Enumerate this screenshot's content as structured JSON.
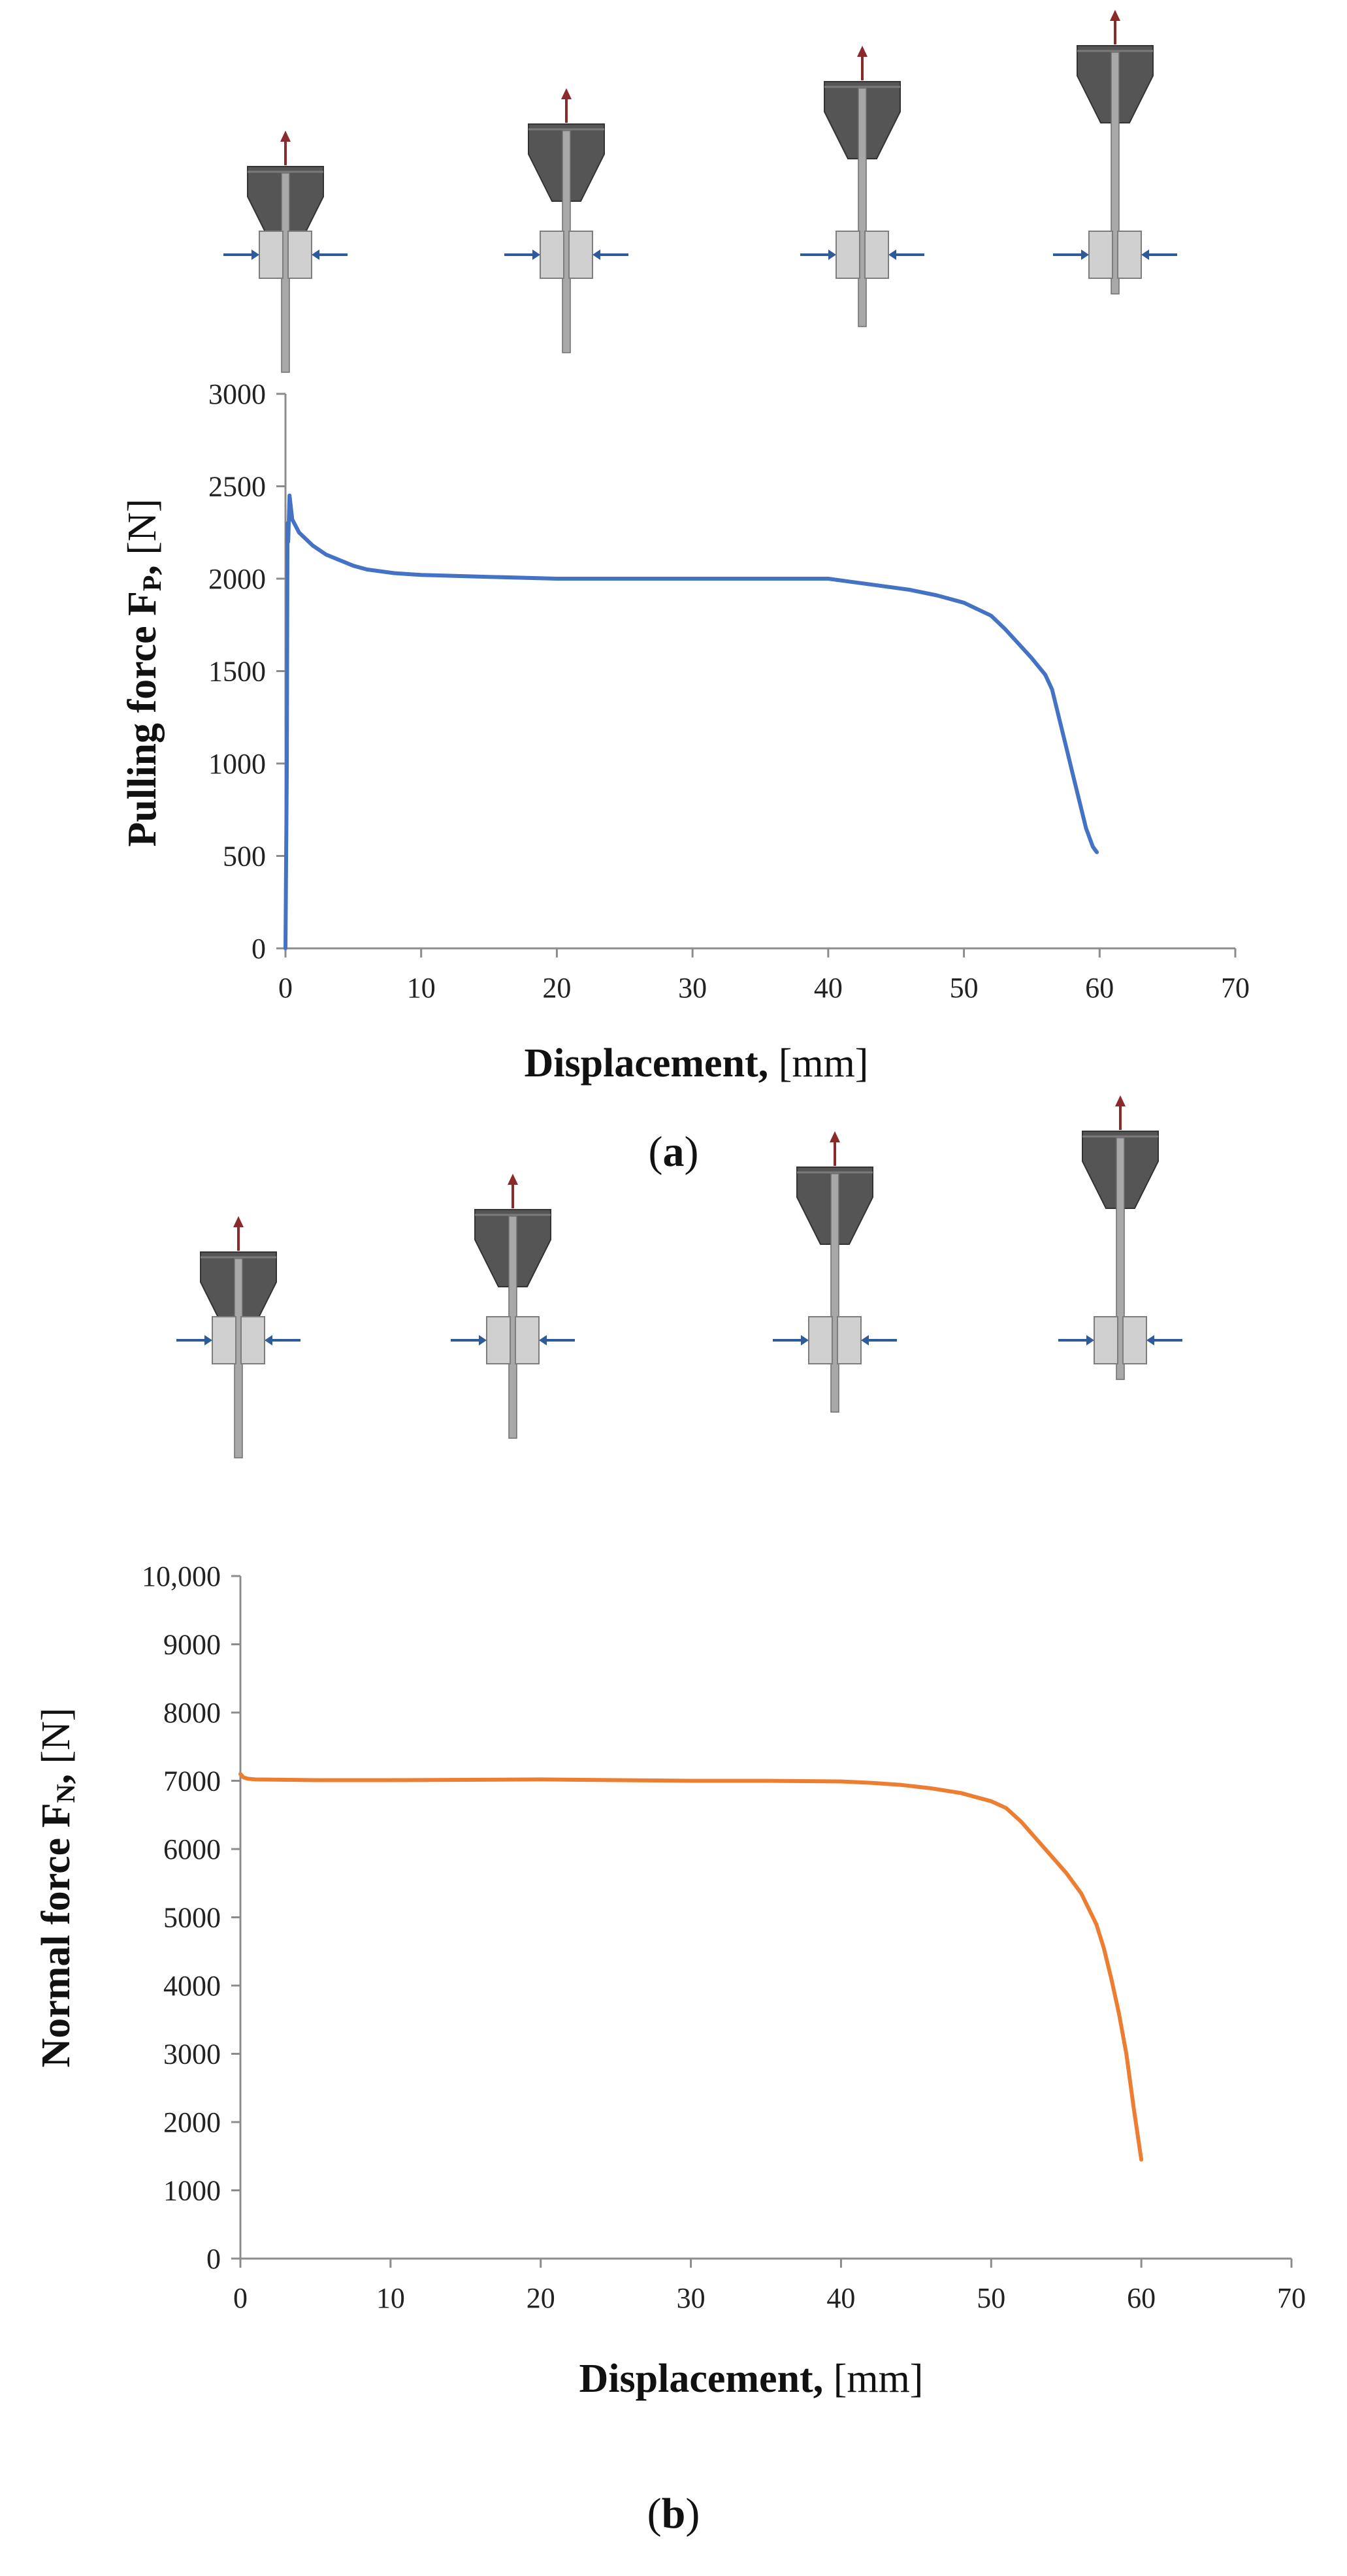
{
  "chart_data": [
    {
      "type": "line",
      "panel_caption": {
        "open": "(",
        "letter": "a",
        "close": ")"
      },
      "xlabel": {
        "bold": "Displacement,",
        "unit": "[mm]"
      },
      "ylabel": {
        "bold": "Pulling force F",
        "sub": "P",
        "bold_tail": ",",
        "unit": "[N]"
      },
      "xlim": [
        0,
        70
      ],
      "ylim": [
        0,
        3000
      ],
      "x_ticks": [
        0,
        10,
        20,
        30,
        40,
        50,
        60,
        70
      ],
      "y_ticks": [
        0,
        500,
        1000,
        1500,
        2000,
        2500,
        3000
      ],
      "x_tick_labels": [
        "0",
        "10",
        "20",
        "30",
        "40",
        "50",
        "60",
        "70"
      ],
      "y_tick_labels": [
        "0",
        "500",
        "1000",
        "1500",
        "2000",
        "2500",
        "3000"
      ],
      "grid": false,
      "series": [
        {
          "name": "Pulling force",
          "color": "#4472c4",
          "x": [
            0,
            0.1,
            0.15,
            0.2,
            0.3,
            0.5,
            1,
            2,
            3,
            4,
            5,
            6,
            8,
            10,
            15,
            20,
            25,
            30,
            35,
            40,
            42,
            44,
            46,
            48,
            50,
            52,
            53,
            54,
            55,
            56,
            56.5,
            57,
            57.5,
            58,
            58.5,
            59,
            59.5,
            59.8
          ],
          "values": [
            0,
            1000,
            2300,
            2200,
            2450,
            2320,
            2250,
            2180,
            2130,
            2100,
            2070,
            2050,
            2030,
            2020,
            2010,
            2000,
            2000,
            2000,
            2000,
            2000,
            1980,
            1960,
            1940,
            1910,
            1870,
            1800,
            1730,
            1650,
            1570,
            1480,
            1400,
            1250,
            1100,
            950,
            800,
            650,
            550,
            520
          ]
        }
      ],
      "stage_icons": [
        {
          "label": "stage-1",
          "color_body": "#555555",
          "color_jaw": "#d0d0d0",
          "color_arrow": "#8b2a2a",
          "color_side": "#2e5c9a"
        },
        {
          "label": "stage-2",
          "color_body": "#555555",
          "color_jaw": "#d0d0d0",
          "color_arrow": "#8b2a2a",
          "color_side": "#2e5c9a"
        },
        {
          "label": "stage-3",
          "color_body": "#555555",
          "color_jaw": "#d0d0d0",
          "color_arrow": "#8b2a2a",
          "color_side": "#2e5c9a"
        },
        {
          "label": "stage-4",
          "color_body": "#555555",
          "color_jaw": "#d0d0d0",
          "color_arrow": "#8b2a2a",
          "color_side": "#2e5c9a"
        }
      ]
    },
    {
      "type": "line",
      "panel_caption": {
        "open": "(",
        "letter": "b",
        "close": ")"
      },
      "xlabel": {
        "bold": "Displacement,",
        "unit": "[mm]"
      },
      "ylabel": {
        "bold": "Normal force F",
        "sub": "N",
        "bold_tail": ",",
        "unit": "[N]"
      },
      "xlim": [
        0,
        70
      ],
      "ylim": [
        0,
        10000
      ],
      "x_ticks": [
        0,
        10,
        20,
        30,
        40,
        50,
        60,
        70
      ],
      "y_ticks": [
        0,
        1000,
        2000,
        3000,
        4000,
        5000,
        6000,
        7000,
        8000,
        9000,
        10000
      ],
      "x_tick_labels": [
        "0",
        "10",
        "20",
        "30",
        "40",
        "50",
        "60",
        "70"
      ],
      "y_tick_labels": [
        "0",
        "1000",
        "2000",
        "3000",
        "4000",
        "5000",
        "6000",
        "7000",
        "8000",
        "9000",
        "10,000"
      ],
      "grid": false,
      "series": [
        {
          "name": "Normal force",
          "color": "#ed7d31",
          "x": [
            0,
            0.2,
            0.5,
            1,
            5,
            10,
            20,
            30,
            35,
            40,
            42,
            44,
            46,
            48,
            50,
            51,
            52,
            53,
            54,
            55,
            56,
            57,
            57.5,
            58,
            58.5,
            59,
            59.5,
            60
          ],
          "values": [
            7100,
            7050,
            7030,
            7020,
            7010,
            7010,
            7020,
            7000,
            7000,
            6990,
            6970,
            6940,
            6890,
            6820,
            6700,
            6600,
            6400,
            6150,
            5900,
            5650,
            5350,
            4900,
            4550,
            4100,
            3600,
            3000,
            2200,
            1450
          ]
        }
      ],
      "stage_icons": [
        {
          "label": "stage-1",
          "color_body": "#555555",
          "color_jaw": "#d0d0d0",
          "color_arrow": "#8b2a2a",
          "color_side": "#2e5c9a"
        },
        {
          "label": "stage-2",
          "color_body": "#555555",
          "color_jaw": "#d0d0d0",
          "color_arrow": "#8b2a2a",
          "color_side": "#2e5c9a"
        },
        {
          "label": "stage-3",
          "color_body": "#555555",
          "color_jaw": "#d0d0d0",
          "color_arrow": "#8b2a2a",
          "color_side": "#2e5c9a"
        },
        {
          "label": "stage-4",
          "color_body": "#555555",
          "color_jaw": "#d0d0d0",
          "color_arrow": "#8b2a2a",
          "color_side": "#2e5c9a"
        }
      ]
    }
  ]
}
